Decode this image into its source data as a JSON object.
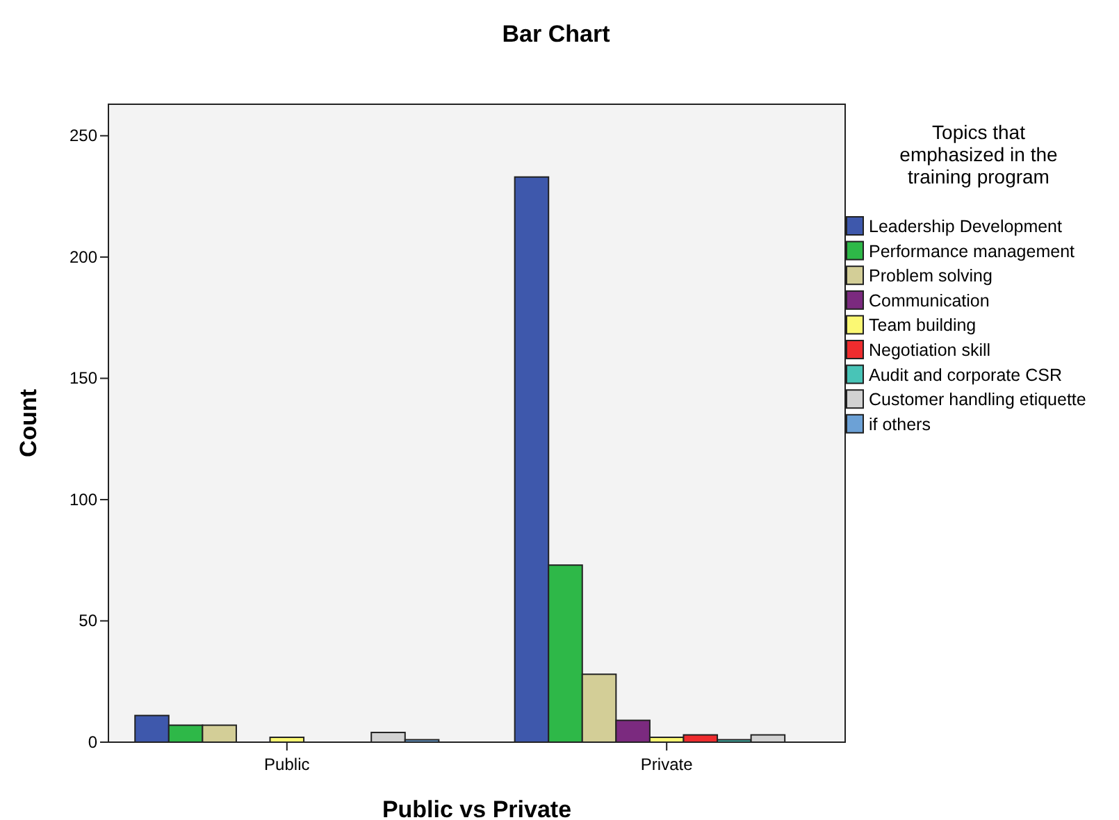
{
  "chart_data": {
    "type": "bar",
    "title": "Bar Chart",
    "xlabel": "Public vs Private",
    "ylabel": "Count",
    "legend_title": "Topics that emphasized in the training program",
    "categories": [
      "Public",
      "Private"
    ],
    "series": [
      {
        "name": "Leadership Development",
        "color": "#3e58ac",
        "values": [
          11,
          233
        ]
      },
      {
        "name": "Performance management",
        "color": "#2eb848",
        "values": [
          7,
          73
        ]
      },
      {
        "name": "Problem solving",
        "color": "#d3ce97",
        "values": [
          7,
          28
        ]
      },
      {
        "name": "Communication",
        "color": "#7b2a7f",
        "values": [
          0,
          9
        ]
      },
      {
        "name": "Team building",
        "color": "#fbf873",
        "values": [
          2,
          2
        ]
      },
      {
        "name": "Negotiation skill",
        "color": "#ef2c2e",
        "values": [
          0,
          3
        ]
      },
      {
        "name": "Audit and corporate CSR",
        "color": "#48c4b7",
        "values": [
          0,
          1
        ]
      },
      {
        "name": "Customer handling etiquette",
        "color": "#d2d2d2",
        "values": [
          4,
          3
        ]
      },
      {
        "name": "if others",
        "color": "#6ca1d6",
        "values": [
          1,
          0
        ]
      }
    ],
    "ylim": [
      0,
      263
    ],
    "yticks": [
      0,
      50,
      100,
      150,
      200,
      250
    ],
    "grid": false,
    "legend": "right"
  }
}
